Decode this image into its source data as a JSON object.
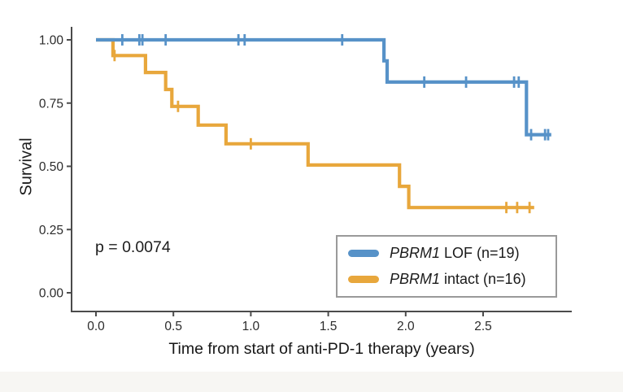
{
  "figure": {
    "background": "#ffffff",
    "footer_strip_color": "#f7f6f3",
    "axis_color": "#4b4b4b",
    "text_color": "#1c1c1c"
  },
  "chart_data": {
    "type": "line",
    "step": true,
    "subtype": "kaplan-meier-survival",
    "title": "",
    "xlabel": "Time from start of anti-PD-1 therapy (years)",
    "ylabel": "Survival",
    "annotation": "p = 0.0074",
    "x_ticks": [
      "0.0",
      "0.5",
      "1.0",
      "1.5",
      "2.0",
      "2.5"
    ],
    "x_tick_values": [
      0,
      0.5,
      1.0,
      1.5,
      2.0,
      2.5
    ],
    "y_ticks": [
      "0.00",
      "0.25",
      "0.50",
      "0.75",
      "1.00"
    ],
    "y_tick_values": [
      0,
      0.25,
      0.5,
      0.75,
      1.0
    ],
    "xlim": [
      0,
      3.05
    ],
    "ylim": [
      0,
      1
    ],
    "grid": false,
    "legend_position": "inside-bottom-right",
    "series": [
      {
        "name": "PBRM1 intact (n=16)",
        "color": "#e8a73c",
        "steps": [
          [
            0,
            1.0
          ],
          [
            0.11,
            1.0
          ],
          [
            0.11,
            0.938
          ],
          [
            0.32,
            0.938
          ],
          [
            0.32,
            0.871
          ],
          [
            0.45,
            0.871
          ],
          [
            0.45,
            0.804
          ],
          [
            0.49,
            0.804
          ],
          [
            0.49,
            0.737
          ],
          [
            0.66,
            0.737
          ],
          [
            0.66,
            0.663
          ],
          [
            0.84,
            0.663
          ],
          [
            0.84,
            0.589
          ],
          [
            1.37,
            0.589
          ],
          [
            1.37,
            0.505
          ],
          [
            1.96,
            0.505
          ],
          [
            1.96,
            0.421
          ],
          [
            2.02,
            0.421
          ],
          [
            2.02,
            0.337
          ],
          [
            2.83,
            0.337
          ]
        ],
        "censors": [
          [
            0.12,
            0.938
          ],
          [
            0.53,
            0.737
          ],
          [
            1.0,
            0.589
          ],
          [
            2.65,
            0.337
          ],
          [
            2.72,
            0.337
          ],
          [
            2.8,
            0.337
          ]
        ]
      },
      {
        "name": "PBRM1 LOF (n=19)",
        "color": "#5792c8",
        "steps": [
          [
            0,
            1.0
          ],
          [
            1.86,
            1.0
          ],
          [
            1.86,
            0.917
          ],
          [
            1.88,
            0.917
          ],
          [
            1.88,
            0.833
          ],
          [
            2.78,
            0.833
          ],
          [
            2.78,
            0.625
          ],
          [
            2.94,
            0.625
          ]
        ],
        "censors": [
          [
            0.17,
            1.0
          ],
          [
            0.28,
            1.0
          ],
          [
            0.3,
            1.0
          ],
          [
            0.45,
            1.0
          ],
          [
            0.92,
            1.0
          ],
          [
            0.96,
            1.0
          ],
          [
            1.59,
            1.0
          ],
          [
            2.12,
            0.833
          ],
          [
            2.39,
            0.833
          ],
          [
            2.7,
            0.833
          ],
          [
            2.73,
            0.833
          ],
          [
            2.81,
            0.625
          ],
          [
            2.9,
            0.625
          ],
          [
            2.92,
            0.625
          ]
        ]
      }
    ]
  },
  "legend": {
    "entries": [
      {
        "gene": "PBRM1",
        "rest": " LOF (n=19)",
        "color": "#5792c8"
      },
      {
        "gene": "PBRM1",
        "rest": " intact (n=16)",
        "color": "#e8a73c"
      }
    ]
  },
  "annotation": {
    "p_value": "p = 0.0074"
  }
}
